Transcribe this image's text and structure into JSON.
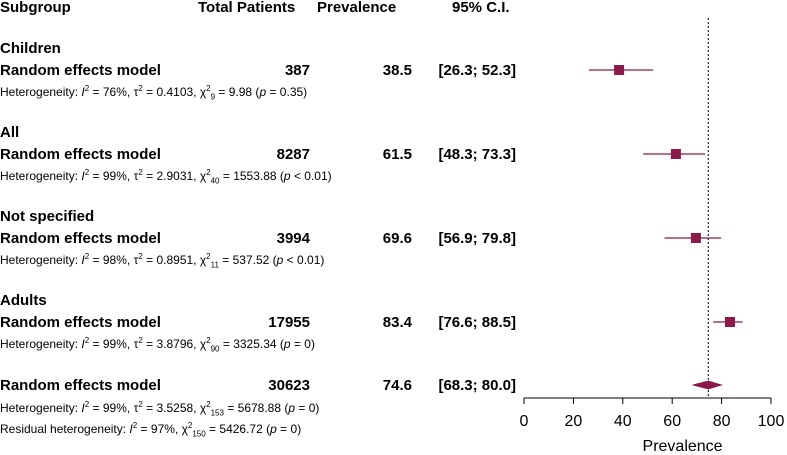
{
  "headers": {
    "subgroup": "Subgroup",
    "total": "Total Patients",
    "prevalence": "Prevalence",
    "ci": "95% C.I."
  },
  "groups": [
    {
      "name": "Children",
      "model_label": "Random effects model",
      "total": "387",
      "estimate_text": "38.5",
      "ci_text": "[26.3; 52.3]",
      "heterogeneity": {
        "prefix": "Heterogeneity: ",
        "i2": "76%",
        "tau2": "0.4103",
        "df": "9",
        "chi2": "9.98",
        "p": "= 0.35"
      }
    },
    {
      "name": "All",
      "model_label": "Random effects model",
      "total": "8287",
      "estimate_text": "61.5",
      "ci_text": "[48.3; 73.3]",
      "heterogeneity": {
        "prefix": "Heterogeneity: ",
        "i2": "99%",
        "tau2": "2.9031",
        "df": "40",
        "chi2": "1553.88",
        "p": "< 0.01"
      }
    },
    {
      "name": "Not specified",
      "model_label": "Random effects model",
      "total": "3994",
      "estimate_text": "69.6",
      "ci_text": "[56.9; 79.8]",
      "heterogeneity": {
        "prefix": "Heterogeneity: ",
        "i2": "98%",
        "tau2": "0.8951",
        "df": "11",
        "chi2": "537.52",
        "p": "< 0.01"
      }
    },
    {
      "name": "Adults",
      "model_label": "Random effects model",
      "total": "17955",
      "estimate_text": "83.4",
      "ci_text": "[76.6; 88.5]",
      "heterogeneity": {
        "prefix": "Heterogeneity: ",
        "i2": "99%",
        "tau2": "3.8796",
        "df": "90",
        "chi2": "3325.34",
        "p": "= 0"
      }
    }
  ],
  "overall": {
    "model_label": "Random effects model",
    "total": "30623",
    "estimate_text": "74.6",
    "ci_text": "[68.3; 80.0]",
    "heterogeneity": {
      "prefix": "Heterogeneity: ",
      "i2": "99%",
      "tau2": "3.5258",
      "df": "153",
      "chi2": "5678.88",
      "p": "= 0"
    },
    "residual": {
      "prefix": "Residual heterogeneity: ",
      "i2": "97%",
      "df": "150",
      "chi2": "5426.72",
      "p": "= 0"
    }
  },
  "chart_data": {
    "type": "forest",
    "xlabel": "Prevalence",
    "xlim": [
      0,
      100
    ],
    "ticks": [
      0,
      20,
      40,
      60,
      80,
      100
    ],
    "reference_line": 74.6,
    "studies": [
      {
        "name": "Children",
        "estimate": 38.5,
        "lower": 26.3,
        "upper": 52.3
      },
      {
        "name": "All",
        "estimate": 61.5,
        "lower": 48.3,
        "upper": 73.3
      },
      {
        "name": "Not specified",
        "estimate": 69.6,
        "lower": 56.9,
        "upper": 79.8
      },
      {
        "name": "Adults",
        "estimate": 83.4,
        "lower": 76.6,
        "upper": 88.5
      }
    ],
    "overall": {
      "estimate": 74.6,
      "lower": 68.3,
      "upper": 80.0
    },
    "colors": {
      "marker": "#8b1a4a",
      "line": "#8b1a4a",
      "axis": "#000000"
    }
  }
}
